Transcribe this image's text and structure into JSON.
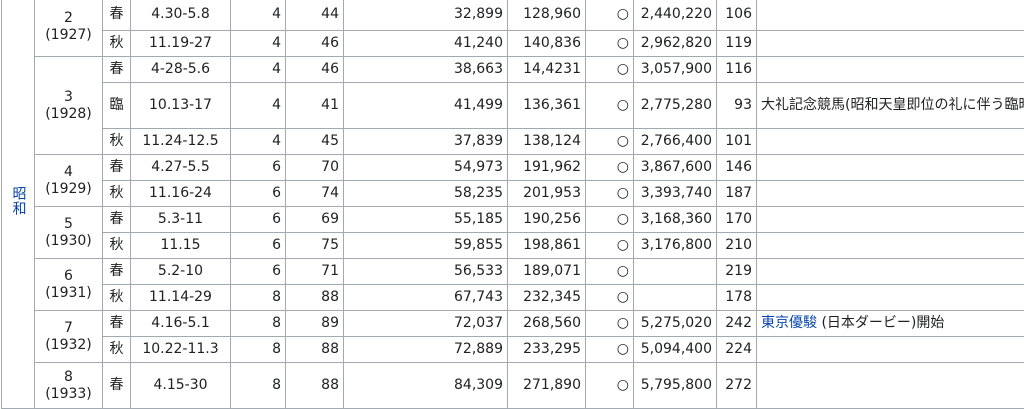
{
  "era": {
    "name": "昭和"
  },
  "years": [
    {
      "year": "2",
      "western": "(1927)"
    },
    {
      "year": "3",
      "western": "(1928)"
    },
    {
      "year": "4",
      "western": "(1929)"
    },
    {
      "year": "5",
      "western": "(1930)"
    },
    {
      "year": "6",
      "western": "(1931)"
    },
    {
      "year": "7",
      "western": "(1932)"
    },
    {
      "year": "8",
      "western": "(1933)"
    }
  ],
  "rows": [
    {
      "season": "春",
      "dates": "4.30-5.8",
      "days": "4",
      "races": "44",
      "visitors": "32,899",
      "sales": "128,960",
      "mark": "○",
      "prize": "2,440,220",
      "horses": "106"
    },
    {
      "season": "秋",
      "dates": "11.19-27",
      "days": "4",
      "races": "46",
      "visitors": "41,240",
      "sales": "140,836",
      "mark": "○",
      "prize": "2,962,820",
      "horses": "119"
    },
    {
      "season": "春",
      "dates": "4-28-5.6",
      "days": "4",
      "races": "46",
      "visitors": "38,663",
      "sales": "14,4231",
      "mark": "○",
      "prize": "3,057,900",
      "horses": "116"
    },
    {
      "season": "臨",
      "dates": "10.13-17",
      "days": "4",
      "races": "41",
      "visitors": "41,499",
      "sales": "136,361",
      "mark": "○",
      "prize": "2,775,280",
      "horses": "93"
    },
    {
      "season": "秋",
      "dates": "11.24-12.5",
      "days": "4",
      "races": "45",
      "visitors": "37,839",
      "sales": "138,124",
      "mark": "○",
      "prize": "2,766,400",
      "horses": "101"
    },
    {
      "season": "春",
      "dates": "4.27-5.5",
      "days": "6",
      "races": "70",
      "visitors": "54,973",
      "sales": "191,962",
      "mark": "○",
      "prize": "3,867,600",
      "horses": "146"
    },
    {
      "season": "秋",
      "dates": "11.16-24",
      "days": "6",
      "races": "74",
      "visitors": "58,235",
      "sales": "201,953",
      "mark": "○",
      "prize": "3,393,740",
      "horses": "187"
    },
    {
      "season": "春",
      "dates": "5.3-11",
      "days": "6",
      "races": "69",
      "visitors": "55,185",
      "sales": "190,256",
      "mark": "○",
      "prize": "3,168,360",
      "horses": "170"
    },
    {
      "season": "秋",
      "dates": "11.15",
      "days": "6",
      "races": "75",
      "visitors": "59,855",
      "sales": "198,861",
      "mark": "○",
      "prize": "3,176,800",
      "horses": "210"
    },
    {
      "season": "春",
      "dates": "5.2-10",
      "days": "6",
      "races": "71",
      "visitors": "56,533",
      "sales": "189,071",
      "mark": "○",
      "prize": "",
      "horses": "219"
    },
    {
      "season": "秋",
      "dates": "11.14-29",
      "days": "8",
      "races": "88",
      "visitors": "67,743",
      "sales": "232,345",
      "mark": "○",
      "prize": "",
      "horses": "178"
    },
    {
      "season": "春",
      "dates": "4.16-5.1",
      "days": "8",
      "races": "89",
      "visitors": "72,037",
      "sales": "268,560",
      "mark": "○",
      "prize": "5,275,020",
      "horses": "242"
    },
    {
      "season": "秋",
      "dates": "10.22-11.3",
      "days": "8",
      "races": "88",
      "visitors": "72,889",
      "sales": "233,295",
      "mark": "○",
      "prize": "5,094,400",
      "horses": "224"
    },
    {
      "season": "春",
      "dates": "4.15-30",
      "days": "8",
      "races": "88",
      "visitors": "84,309",
      "sales": "271,890",
      "mark": "○",
      "prize": "5,795,800",
      "horses": "272"
    }
  ],
  "notes": {
    "n1928": "大礼記念競馬(昭和天皇即位の礼に伴う臨時開催)",
    "n1932_link": "東京優駿",
    "n1932_text": " (日本ダービー)開始"
  },
  "colors": {
    "border": "#a2a9b1",
    "link": "#0645ad",
    "text": "#202122"
  }
}
